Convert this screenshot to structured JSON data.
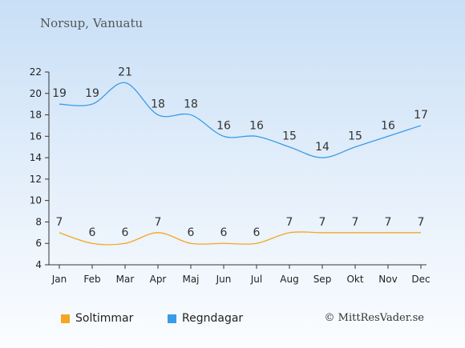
{
  "header": {
    "location": "Norsup, Vanuatu"
  },
  "credit": "© MittResVader.se",
  "colors": {
    "sun": "#f5a623",
    "rain": "#3a9be8",
    "axis": "#333333"
  },
  "chart_data": {
    "type": "line",
    "categories": [
      "Jan",
      "Feb",
      "Mar",
      "Apr",
      "Maj",
      "Jun",
      "Jul",
      "Aug",
      "Sep",
      "Okt",
      "Nov",
      "Dec"
    ],
    "ylim": [
      4,
      22
    ],
    "yticks": [
      4,
      6,
      8,
      10,
      12,
      14,
      16,
      18,
      20,
      22
    ],
    "grid": false,
    "legend_position": "bottom-left",
    "series": [
      {
        "name": "Soltimmar",
        "values": [
          7,
          6,
          6,
          7,
          6,
          6,
          6,
          7,
          7,
          7,
          7,
          7
        ]
      },
      {
        "name": "Regndagar",
        "values": [
          19,
          19,
          21,
          18,
          18,
          16,
          16,
          15,
          14,
          15,
          16,
          17
        ]
      }
    ]
  }
}
